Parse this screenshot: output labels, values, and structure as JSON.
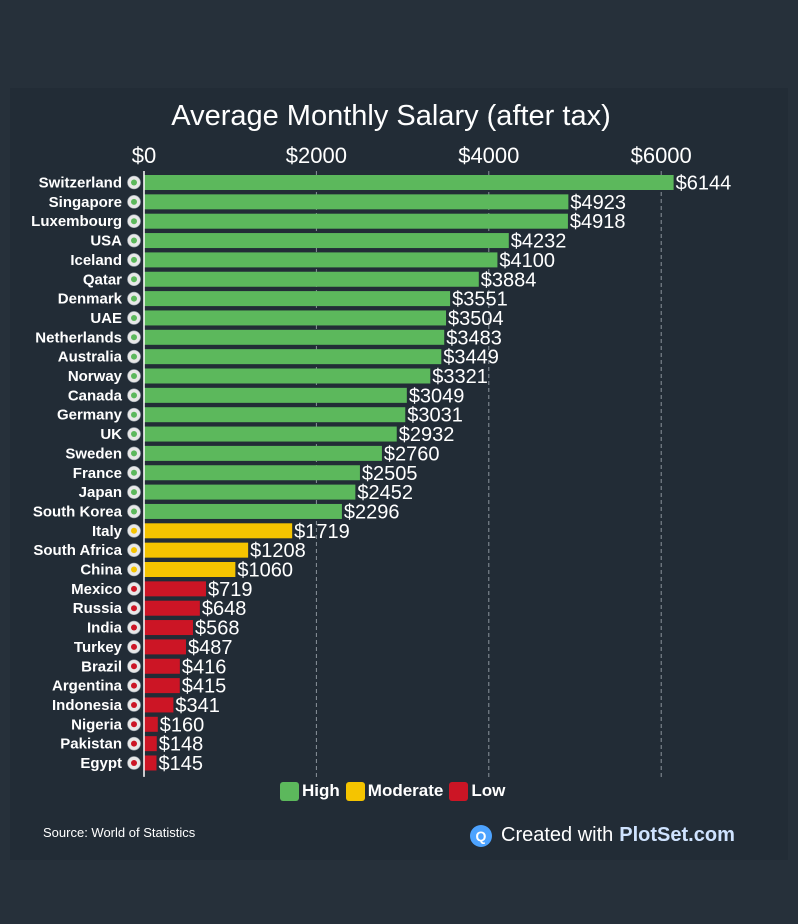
{
  "chart_data": {
    "type": "bar",
    "orientation": "horizontal",
    "title": "Average Monthly Salary (after tax)",
    "xlim": [
      0,
      6800
    ],
    "xticks": [
      0,
      2000,
      4000,
      6000
    ],
    "xtick_labels": [
      "$0",
      "$2000",
      "$4000",
      "$6000"
    ],
    "grid": true,
    "legend_position": "bottom",
    "legend": [
      {
        "label": "High",
        "color": "#5cb85c"
      },
      {
        "label": "Moderate",
        "color": "#f5c400"
      },
      {
        "label": "Low",
        "color": "#cc1525"
      }
    ],
    "categories": [
      "Switzerland",
      "Singapore",
      "Luxembourg",
      "USA",
      "Iceland",
      "Qatar",
      "Denmark",
      "UAE",
      "Netherlands",
      "Australia",
      "Norway",
      "Canada",
      "Germany",
      "UK",
      "Sweden",
      "France",
      "Japan",
      "South Korea",
      "Italy",
      "South Africa",
      "China",
      "Mexico",
      "Russia",
      "India",
      "Turkey",
      "Brazil",
      "Argentina",
      "Indonesia",
      "Nigeria",
      "Pakistan",
      "Egypt"
    ],
    "values": [
      6144,
      4923,
      4918,
      4232,
      4100,
      3884,
      3551,
      3504,
      3483,
      3449,
      3321,
      3049,
      3031,
      2932,
      2760,
      2505,
      2452,
      2296,
      1719,
      1208,
      1060,
      719,
      648,
      568,
      487,
      416,
      415,
      341,
      160,
      148,
      145
    ],
    "value_labels": [
      "$6144",
      "$4923",
      "$4918",
      "$4232",
      "$4100",
      "$3884",
      "$3551",
      "$3504",
      "$3483",
      "$3449",
      "$3321",
      "$3049",
      "$3031",
      "$2932",
      "$2760",
      "$2505",
      "$2452",
      "$2296",
      "$1719",
      "$1208",
      "$1060",
      "$719",
      "$648",
      "$568",
      "$487",
      "$416",
      "$415",
      "$341",
      "$160",
      "$148",
      "$145"
    ],
    "levels": [
      "High",
      "High",
      "High",
      "High",
      "High",
      "High",
      "High",
      "High",
      "High",
      "High",
      "High",
      "High",
      "High",
      "High",
      "High",
      "High",
      "High",
      "High",
      "Moderate",
      "Moderate",
      "Moderate",
      "Low",
      "Low",
      "Low",
      "Low",
      "Low",
      "Low",
      "Low",
      "Low",
      "Low",
      "Low"
    ]
  },
  "legend_labels": {
    "high": "High",
    "moderate": "Moderate",
    "low": "Low"
  },
  "source_text": "Source: World of Statistics",
  "brand": {
    "prefix": "Created with",
    "name": "PlotSet.com",
    "icon": "plotset-logo-icon"
  }
}
